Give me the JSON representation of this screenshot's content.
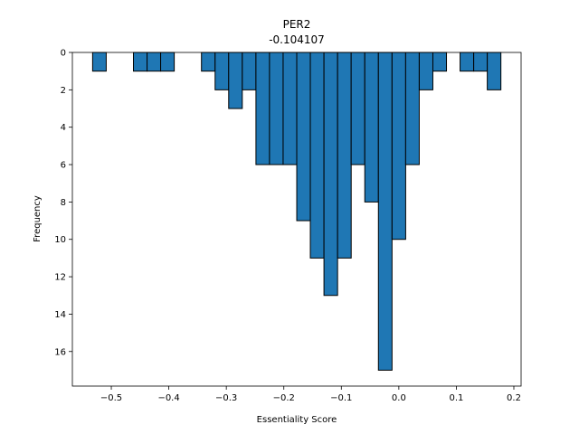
{
  "chart_data": {
    "type": "bar",
    "title": "PER2",
    "subtitle": "-0.104107",
    "xlabel": "Essentiality Score",
    "ylabel": "Frequency",
    "bin_width": 0.02366,
    "bins": [
      {
        "start": -0.5325,
        "count": 1
      },
      {
        "start": -0.5088,
        "count": 0
      },
      {
        "start": -0.4852,
        "count": 0
      },
      {
        "start": -0.4615,
        "count": 1
      },
      {
        "start": -0.4378,
        "count": 1
      },
      {
        "start": -0.4142,
        "count": 1
      },
      {
        "start": -0.3905,
        "count": 0
      },
      {
        "start": -0.3668,
        "count": 0
      },
      {
        "start": -0.3432,
        "count": 1
      },
      {
        "start": -0.3195,
        "count": 2
      },
      {
        "start": -0.2959,
        "count": 3
      },
      {
        "start": -0.2722,
        "count": 2
      },
      {
        "start": -0.2485,
        "count": 6
      },
      {
        "start": -0.2249,
        "count": 6
      },
      {
        "start": -0.2012,
        "count": 6
      },
      {
        "start": -0.1775,
        "count": 9
      },
      {
        "start": -0.1539,
        "count": 11
      },
      {
        "start": -0.1302,
        "count": 13
      },
      {
        "start": -0.1065,
        "count": 11
      },
      {
        "start": -0.0829,
        "count": 6
      },
      {
        "start": -0.0592,
        "count": 8
      },
      {
        "start": -0.0355,
        "count": 17
      },
      {
        "start": -0.0118,
        "count": 10
      },
      {
        "start": 0.0118,
        "count": 6
      },
      {
        "start": 0.0355,
        "count": 2
      },
      {
        "start": 0.0592,
        "count": 1
      },
      {
        "start": 0.0828,
        "count": 0
      },
      {
        "start": 0.1065,
        "count": 1
      },
      {
        "start": 0.1302,
        "count": 1
      },
      {
        "start": 0.1538,
        "count": 2
      }
    ],
    "xlim": [
      -0.5677,
      0.2126
    ],
    "ylim": [
      0,
      17.85
    ],
    "y_inverted": true,
    "x_ticks": [
      {
        "value": -0.5,
        "label": "−0.5"
      },
      {
        "value": -0.4,
        "label": "−0.4"
      },
      {
        "value": -0.3,
        "label": "−0.3"
      },
      {
        "value": -0.2,
        "label": "−0.2"
      },
      {
        "value": -0.1,
        "label": "−0.1"
      },
      {
        "value": 0.0,
        "label": "0.0"
      },
      {
        "value": 0.1,
        "label": "0.1"
      },
      {
        "value": 0.2,
        "label": "0.2"
      }
    ],
    "y_ticks": [
      {
        "value": 0,
        "label": "0"
      },
      {
        "value": 2,
        "label": "2"
      },
      {
        "value": 4,
        "label": "4"
      },
      {
        "value": 6,
        "label": "6"
      },
      {
        "value": 8,
        "label": "8"
      },
      {
        "value": 10,
        "label": "10"
      },
      {
        "value": 12,
        "label": "12"
      },
      {
        "value": 14,
        "label": "14"
      },
      {
        "value": 16,
        "label": "16"
      }
    ],
    "bar_color": "#1f77b4",
    "edge_color": "#000000",
    "grid": false,
    "legend": "none"
  }
}
